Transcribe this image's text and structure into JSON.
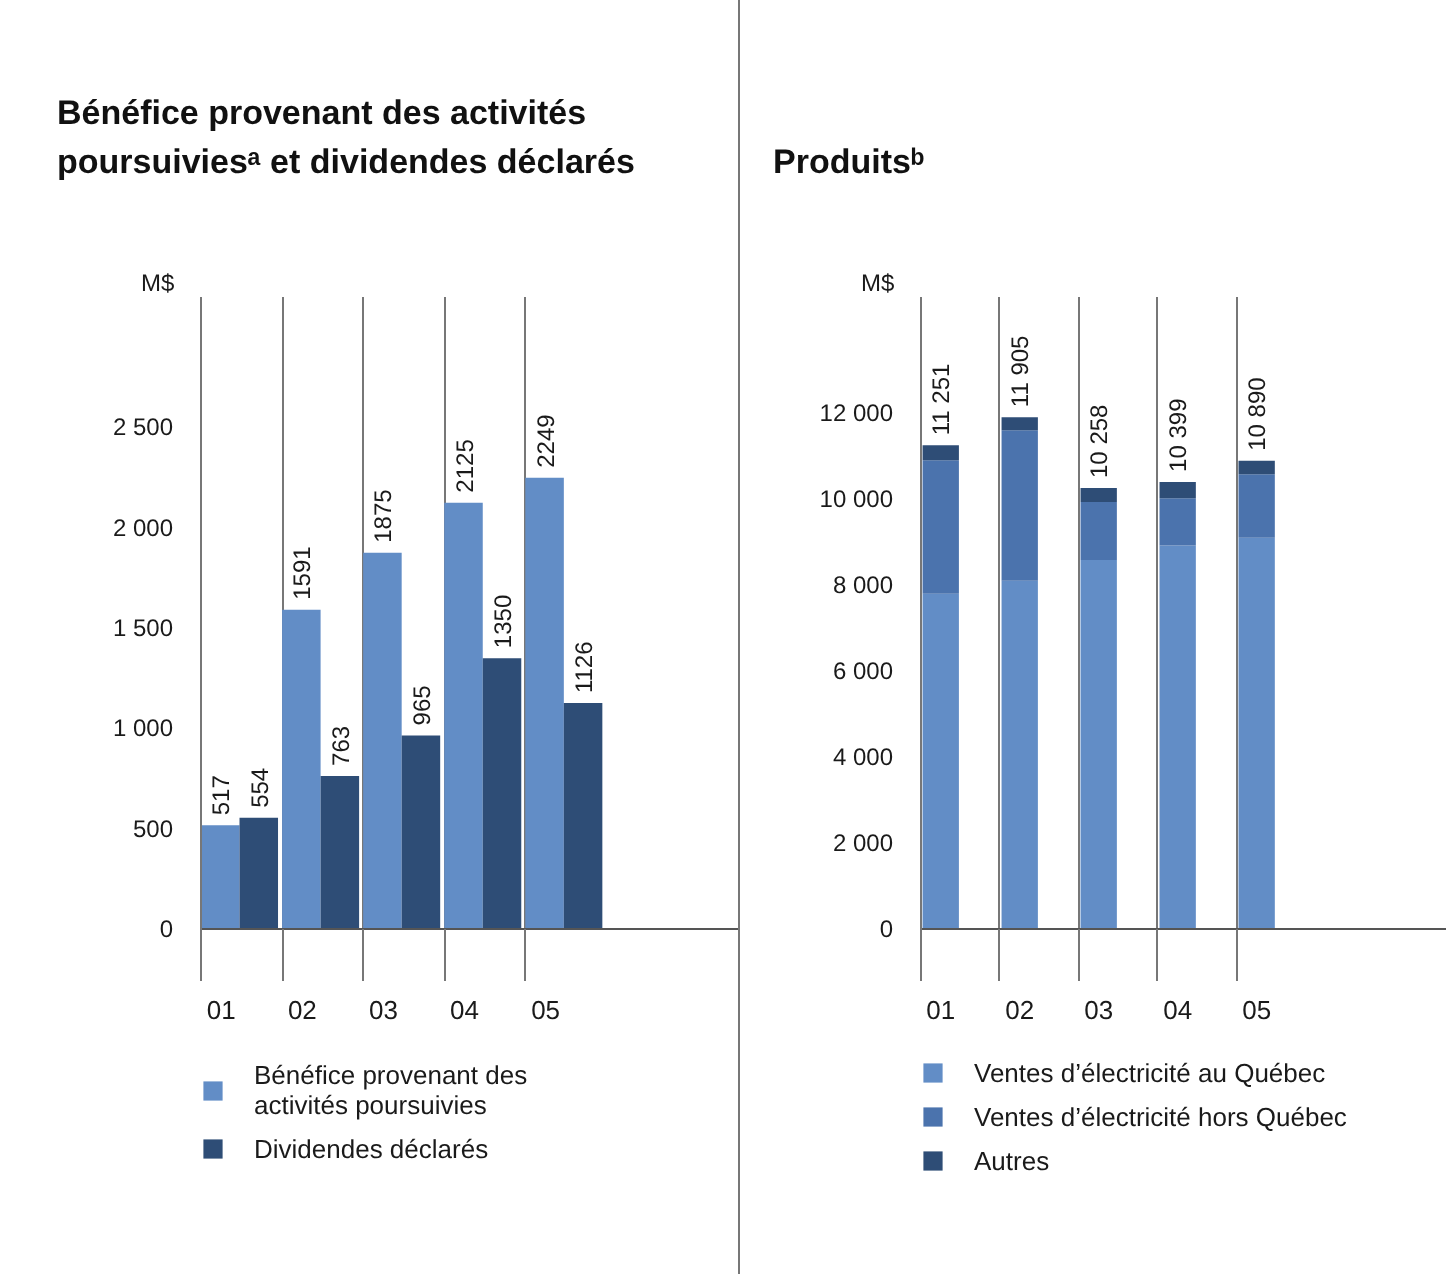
{
  "chart_data": [
    {
      "type": "bar",
      "title": "Bénéfice provenant des activités poursuiviesᵃ et dividendes déclarés",
      "ylabel": "M$",
      "categories": [
        "01",
        "02",
        "03",
        "04",
        "05"
      ],
      "series": [
        {
          "name": "Bénéfice provenant des activités poursuivies",
          "color": "#628dc6",
          "values": [
            517,
            1591,
            1875,
            2125,
            2249
          ]
        },
        {
          "name": "Dividendes déclarés",
          "color": "#2e4d76",
          "values": [
            554,
            763,
            965,
            1350,
            1126
          ]
        }
      ],
      "data_labels": true,
      "ylim": [
        0,
        3150
      ],
      "yticks": [
        0,
        500,
        {
          "value": 1000,
          "label": "1 000"
        },
        {
          "value": 1500,
          "label": "1 500"
        },
        {
          "value": 2000,
          "label": "2 000"
        },
        {
          "value": 2500,
          "label": "2 500"
        }
      ],
      "grid": "x",
      "legend": "bottom"
    },
    {
      "type": "bar",
      "title": "Produitsᵇ",
      "ylabel": "M$",
      "categories": [
        "01",
        "02",
        "03",
        "04",
        "05"
      ],
      "stacked": true,
      "series": [
        {
          "name": "Ventes d’électricité au Québec",
          "color": "#628dc6",
          "values": [
            7800,
            8100,
            8580,
            8920,
            9100
          ]
        },
        {
          "name": "Ventes d’électricité hors Québec",
          "color": "#4b73ad",
          "values": [
            3100,
            3500,
            1350,
            1100,
            1480
          ]
        },
        {
          "name": "Autres",
          "color": "#2e4d76",
          "values": [
            351,
            305,
            328,
            379,
            310
          ]
        }
      ],
      "totals": [
        "11 251",
        "11 905",
        "10 258",
        "10 399",
        "10 890"
      ],
      "ylim": [
        0,
        14700
      ],
      "yticks": [
        0,
        {
          "value": 2000,
          "label": "2 000"
        },
        {
          "value": 4000,
          "label": "4 000"
        },
        {
          "value": 6000,
          "label": "6 000"
        },
        {
          "value": 8000,
          "label": "8 000"
        },
        {
          "value": 10000,
          "label": "10 000"
        },
        {
          "value": 12000,
          "label": "12 000"
        }
      ],
      "grid": "x",
      "legend": "bottom"
    }
  ]
}
